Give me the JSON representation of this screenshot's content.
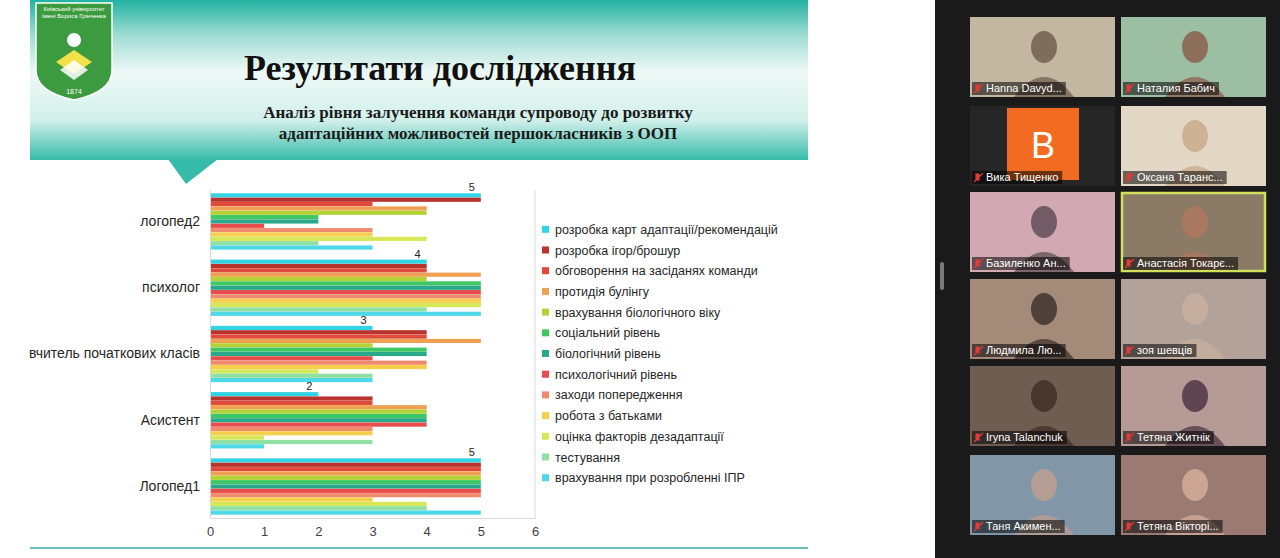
{
  "chart_data": {
    "type": "bar",
    "orientation": "horizontal",
    "title": "Результати дослідження",
    "subtitle": "Аналіз рівня залучення команди супроводу до розвитку адаптаційних можливостей першокласників з ООП",
    "categories": [
      "логопед2",
      "психолог",
      "вчитель початкових класів",
      "Асистент",
      "Логопед1"
    ],
    "series": [
      {
        "name": "розробка карт адаптації/рекомендацій",
        "color": "#33d3e6",
        "values": [
          5,
          4,
          3,
          2,
          5
        ],
        "data_labels": true
      },
      {
        "name": "розробка ігор/брошур",
        "color": "#b8332e",
        "values": [
          5,
          4,
          4,
          3,
          5
        ]
      },
      {
        "name": "обговорення на засіданях команди",
        "color": "#e04a3a",
        "values": [
          3,
          4,
          4,
          3,
          5
        ]
      },
      {
        "name": "протидія булінгу",
        "color": "#f0a052",
        "values": [
          4,
          5,
          5,
          4,
          5
        ]
      },
      {
        "name": "врахування біологічного віку",
        "color": "#b3d235",
        "values": [
          4,
          4,
          3,
          4,
          5
        ]
      },
      {
        "name": "соціальний рівень",
        "color": "#3ec764",
        "values": [
          2,
          5,
          4,
          4,
          5
        ]
      },
      {
        "name": "біологічний рівень",
        "color": "#2aa98a",
        "values": [
          2,
          5,
          4,
          4,
          5
        ]
      },
      {
        "name": "психологічний рівень",
        "color": "#e84c4c",
        "values": [
          1,
          5,
          3,
          4,
          5
        ]
      },
      {
        "name": "заходи попередження",
        "color": "#f08a6e",
        "values": [
          3,
          5,
          4,
          3,
          5
        ]
      },
      {
        "name": "робота з батьками",
        "color": "#f6d04d",
        "values": [
          3,
          5,
          4,
          3,
          3
        ]
      },
      {
        "name": "оцінка факторів дезадаптації",
        "color": "#d6e75a",
        "values": [
          4,
          5,
          2,
          1,
          4
        ]
      },
      {
        "name": "тестування",
        "color": "#8fe0a2",
        "values": [
          2,
          4,
          3,
          3,
          4
        ]
      },
      {
        "name": "врахування при розробленні ІПР",
        "color": "#4fd8e8",
        "values": [
          3,
          5,
          3,
          1,
          5
        ]
      }
    ],
    "xlim": [
      0,
      6
    ],
    "xticks": [
      0,
      1,
      2,
      3,
      4,
      5,
      6
    ],
    "legend": "right",
    "grid": false
  },
  "logo": {
    "text": "Київський університет імені Бориса Грінченка",
    "year": "1874"
  },
  "participants": [
    {
      "name": "Hanna Davyd..."
    },
    {
      "name": "Наталия Бабич"
    },
    {
      "name": "Вика Тищенко",
      "avatar": "B"
    },
    {
      "name": "Оксана Таранс..."
    },
    {
      "name": "Базиленко Ан..."
    },
    {
      "name": "Анастасія Токарє..."
    },
    {
      "name": "Людмила Лю..."
    },
    {
      "name": "зоя шевців"
    },
    {
      "name": "Iryna Talanchuk"
    },
    {
      "name": "Тетяна Житнік"
    },
    {
      "name": "Таня Акимен..."
    },
    {
      "name": "Тетяна Вікторі..."
    }
  ]
}
